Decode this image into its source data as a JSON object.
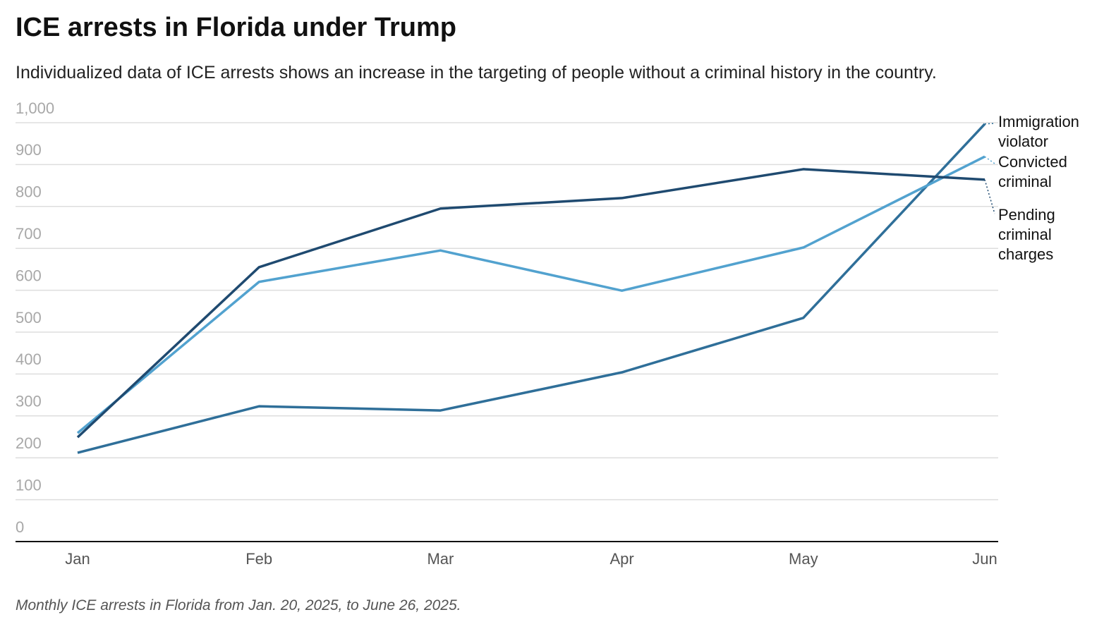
{
  "chart_data": {
    "type": "line",
    "title": "ICE arrests in Florida under Trump",
    "subtitle": "Individualized data of ICE arrests shows an increase in the targeting of people without a criminal history in the country.",
    "caption": "Monthly ICE arrests in Florida from Jan. 20, 2025, to June 26, 2025.",
    "categories": [
      "Jan",
      "Feb",
      "Mar",
      "Apr",
      "May",
      "Jun"
    ],
    "series": [
      {
        "name": "Immigration violator",
        "color": "#2f6f99",
        "values": [
          212,
          323,
          313,
          404,
          534,
          997
        ]
      },
      {
        "name": "Convicted criminal",
        "color": "#52a2cf",
        "values": [
          259,
          620,
          695,
          599,
          702,
          919
        ]
      },
      {
        "name": "Pending criminal charges",
        "color": "#1f4a70",
        "values": [
          249,
          655,
          795,
          820,
          889,
          864
        ]
      }
    ],
    "ylim": [
      0,
      1000
    ],
    "yticks": [
      0,
      100,
      200,
      300,
      400,
      500,
      600,
      700,
      800,
      900,
      {
        "value": 1000,
        "label": "1,000"
      }
    ],
    "grid": true
  }
}
